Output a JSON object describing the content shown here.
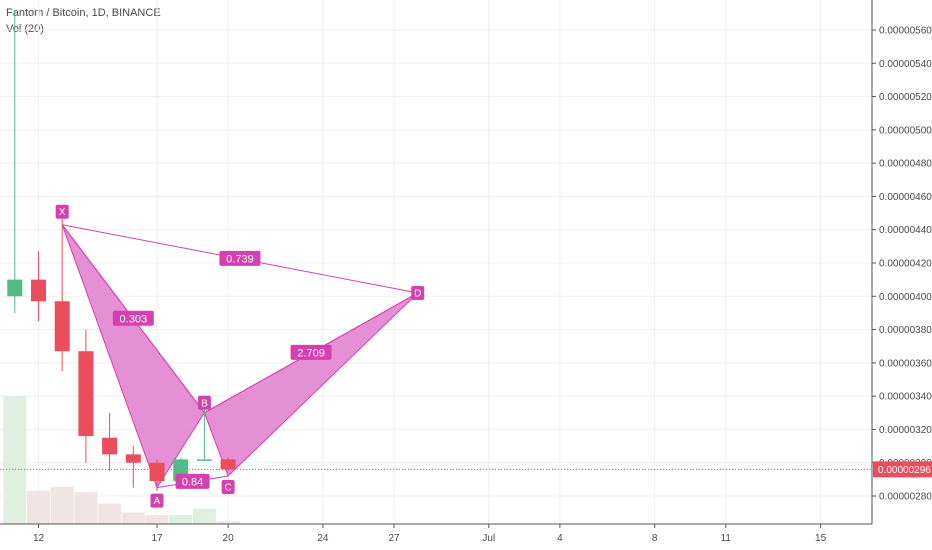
{
  "header": {
    "symbol_line": "Fantom / Bitcoin, 1D, BINANCE",
    "volume_line": "Vol (20)"
  },
  "chart_data": {
    "type": "candlestick",
    "title": "Fantom / Bitcoin, 1D, BINANCE",
    "ylim": [
      2.7e-06,
      5.72e-06
    ],
    "y_ticks": [
      "0.00000280",
      "0.00000300",
      "0.00000320",
      "0.00000340",
      "0.00000360",
      "0.00000380",
      "0.00000400",
      "0.00000420",
      "0.00000440",
      "0.00000460",
      "0.00000480",
      "0.00000500",
      "0.00000520",
      "0.00000540",
      "0.00000560"
    ],
    "x_ticks": [
      {
        "label": "12",
        "day": 12
      },
      {
        "label": "17",
        "day": 17
      },
      {
        "label": "20",
        "day": 20
      },
      {
        "label": "24",
        "day": 24
      },
      {
        "label": "27",
        "day": 27
      },
      {
        "label": "Jul",
        "day": 31
      },
      {
        "label": "4",
        "day": 34
      },
      {
        "label": "8",
        "day": 38
      },
      {
        "label": "11",
        "day": 41
      },
      {
        "label": "15",
        "day": 45
      }
    ],
    "candles": [
      {
        "day": 11,
        "open": 4e-06,
        "close": 4.1e-06,
        "high": 5.72e-06,
        "low": 3.9e-06
      },
      {
        "day": 12,
        "open": 4.1e-06,
        "close": 3.97e-06,
        "high": 4.27e-06,
        "low": 3.85e-06
      },
      {
        "day": 13,
        "open": 3.97e-06,
        "close": 3.67e-06,
        "high": 4.47e-06,
        "low": 3.55e-06
      },
      {
        "day": 14,
        "open": 3.67e-06,
        "close": 3.16e-06,
        "high": 3.8e-06,
        "low": 3e-06
      },
      {
        "day": 15,
        "open": 3.15e-06,
        "close": 3.05e-06,
        "high": 3.3e-06,
        "low": 2.95e-06
      },
      {
        "day": 16,
        "open": 3.05e-06,
        "close": 3e-06,
        "high": 3.1e-06,
        "low": 2.85e-06
      },
      {
        "day": 17,
        "open": 3e-06,
        "close": 2.89e-06,
        "high": 3.02e-06,
        "low": 2.83e-06
      },
      {
        "day": 18,
        "open": 2.89e-06,
        "close": 3.02e-06,
        "high": 3.03e-06,
        "low": 2.88e-06
      },
      {
        "day": 19,
        "open": 3.02e-06,
        "close": 3.02e-06,
        "high": 3.33e-06,
        "low": 3.01e-06
      },
      {
        "day": 20,
        "open": 3.02e-06,
        "close": 2.96e-06,
        "high": 3.03e-06,
        "low": 2.95e-06
      }
    ],
    "volume": [
      {
        "day": 11,
        "value": 100,
        "color": "#dff0e2"
      },
      {
        "day": 12,
        "value": 26,
        "color": "#f1e4e4"
      },
      {
        "day": 13,
        "value": 29,
        "color": "#f1e4e4"
      },
      {
        "day": 14,
        "value": 25,
        "color": "#f1e4e4"
      },
      {
        "day": 15,
        "value": 16,
        "color": "#f1e4e4"
      },
      {
        "day": 16,
        "value": 9,
        "color": "#f1e4e4"
      },
      {
        "day": 17,
        "value": 7,
        "color": "#f1e4e4"
      },
      {
        "day": 18,
        "value": 7,
        "color": "#dff0e2"
      },
      {
        "day": 19,
        "value": 12,
        "color": "#dff0e2"
      },
      {
        "day": 20,
        "value": 2,
        "color": "#f1e4e4"
      }
    ],
    "current_price": {
      "label": "0.00000296",
      "value": 2.96e-06
    },
    "pattern": {
      "points": [
        {
          "name": "X",
          "day": 13,
          "price": 4.43e-06
        },
        {
          "name": "A",
          "day": 17,
          "price": 2.85e-06
        },
        {
          "name": "B",
          "day": 19,
          "price": 3.3e-06
        },
        {
          "name": "C",
          "day": 20,
          "price": 2.92e-06
        },
        {
          "name": "D",
          "day": 28,
          "price": 4.02e-06
        }
      ],
      "ratios": [
        {
          "label": "0.303",
          "from": "X",
          "to": "B"
        },
        {
          "label": "0.739",
          "from": "X",
          "to": "D"
        },
        {
          "label": "2.709",
          "from": "B",
          "to": "D"
        },
        {
          "label": "0.84",
          "from": "A",
          "to": "C"
        }
      ]
    },
    "colors": {
      "up": "#53b987",
      "down": "#eb4d5c",
      "pattern": "#d63fb0",
      "pattern_fill": "#e07ccc",
      "price_line": "#eb4d5c"
    }
  }
}
